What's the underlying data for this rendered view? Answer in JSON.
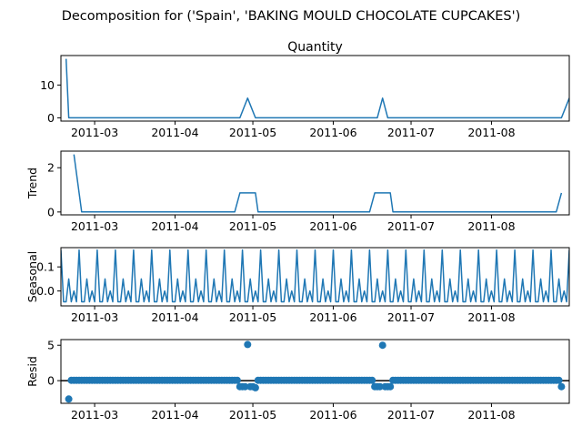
{
  "title": "Decomposition for ('Spain', 'BAKING MOULD CHOCOLATE CUPCAKES')",
  "colors": {
    "line": "#1f77b4",
    "axis": "#000000"
  },
  "chart_data": [
    {
      "type": "line",
      "title": "Quantity",
      "ylabel": "",
      "ylim": [
        -1,
        19
      ],
      "yticks": [
        0,
        10
      ],
      "xticks": [
        "2011-03",
        "2011-04",
        "2011-05",
        "2011-06",
        "2011-07",
        "2011-08"
      ],
      "series": [
        {
          "values": [
            {
              "x": "2011-02-18",
              "y": 18
            },
            {
              "x": "2011-02-19",
              "y": 0
            },
            {
              "x": "2011-04-26",
              "y": 0
            },
            {
              "x": "2011-04-29",
              "y": 6
            },
            {
              "x": "2011-05-02",
              "y": 0
            },
            {
              "x": "2011-06-18",
              "y": 0
            },
            {
              "x": "2011-06-20",
              "y": 6
            },
            {
              "x": "2011-06-22",
              "y": 0
            },
            {
              "x": "2011-08-28",
              "y": 0
            },
            {
              "x": "2011-08-31",
              "y": 6
            }
          ]
        }
      ]
    },
    {
      "type": "line",
      "title": "",
      "ylabel": "Trend",
      "ylim": [
        -0.13,
        2.75
      ],
      "yticks": [
        0,
        2
      ],
      "xticks": [
        "2011-03",
        "2011-04",
        "2011-05",
        "2011-06",
        "2011-07",
        "2011-08"
      ],
      "series": [
        {
          "values": [
            {
              "x": "2011-02-21",
              "y": 2.6
            },
            {
              "x": "2011-02-24",
              "y": 0
            },
            {
              "x": "2011-04-24",
              "y": 0
            },
            {
              "x": "2011-04-26",
              "y": 0.86
            },
            {
              "x": "2011-05-02",
              "y": 0.86
            },
            {
              "x": "2011-05-03",
              "y": 0
            },
            {
              "x": "2011-06-15",
              "y": 0
            },
            {
              "x": "2011-06-17",
              "y": 0.86
            },
            {
              "x": "2011-06-23",
              "y": 0.86
            },
            {
              "x": "2011-06-24",
              "y": 0
            },
            {
              "x": "2011-08-26",
              "y": 0
            },
            {
              "x": "2011-08-28",
              "y": 0.86
            }
          ]
        }
      ]
    },
    {
      "type": "line",
      "title": "",
      "ylabel": "Seasonal",
      "ylim": [
        -0.062,
        0.18
      ],
      "yticks": [
        0.0,
        0.1
      ],
      "yticklabels": [
        "0.0",
        "0.1"
      ],
      "xticks": [
        "2011-03",
        "2011-04",
        "2011-05",
        "2011-06",
        "2011-07",
        "2011-08"
      ],
      "period": 7,
      "pattern": [
        0.17,
        -0.045,
        -0.045,
        0.05,
        -0.045,
        0.0,
        -0.045
      ],
      "start": "2011-02-16",
      "end": "2011-08-31"
    },
    {
      "type": "scatter",
      "title": "",
      "ylabel": "Resid",
      "ylim": [
        -3.2,
        5.8
      ],
      "yticks": [
        0,
        5
      ],
      "xticks": [
        "2011-03",
        "2011-04",
        "2011-05",
        "2011-06",
        "2011-07",
        "2011-08"
      ],
      "baseline": 0,
      "start": "2011-02-19",
      "end": "2011-08-28",
      "default_y": 0.05,
      "points": [
        {
          "x": "2011-02-19",
          "y": -2.6
        },
        {
          "x": "2011-04-26",
          "y": -0.85
        },
        {
          "x": "2011-04-27",
          "y": -0.85
        },
        {
          "x": "2011-04-28",
          "y": -0.85
        },
        {
          "x": "2011-04-29",
          "y": 5.1
        },
        {
          "x": "2011-04-30",
          "y": -0.85
        },
        {
          "x": "2011-05-01",
          "y": -0.85
        },
        {
          "x": "2011-05-02",
          "y": -1.0
        },
        {
          "x": "2011-06-17",
          "y": -0.85
        },
        {
          "x": "2011-06-18",
          "y": -0.85
        },
        {
          "x": "2011-06-19",
          "y": -0.85
        },
        {
          "x": "2011-06-20",
          "y": 5.0
        },
        {
          "x": "2011-06-21",
          "y": -0.85
        },
        {
          "x": "2011-06-22",
          "y": -0.85
        },
        {
          "x": "2011-06-23",
          "y": -0.85
        },
        {
          "x": "2011-08-28",
          "y": -0.85
        }
      ]
    }
  ]
}
